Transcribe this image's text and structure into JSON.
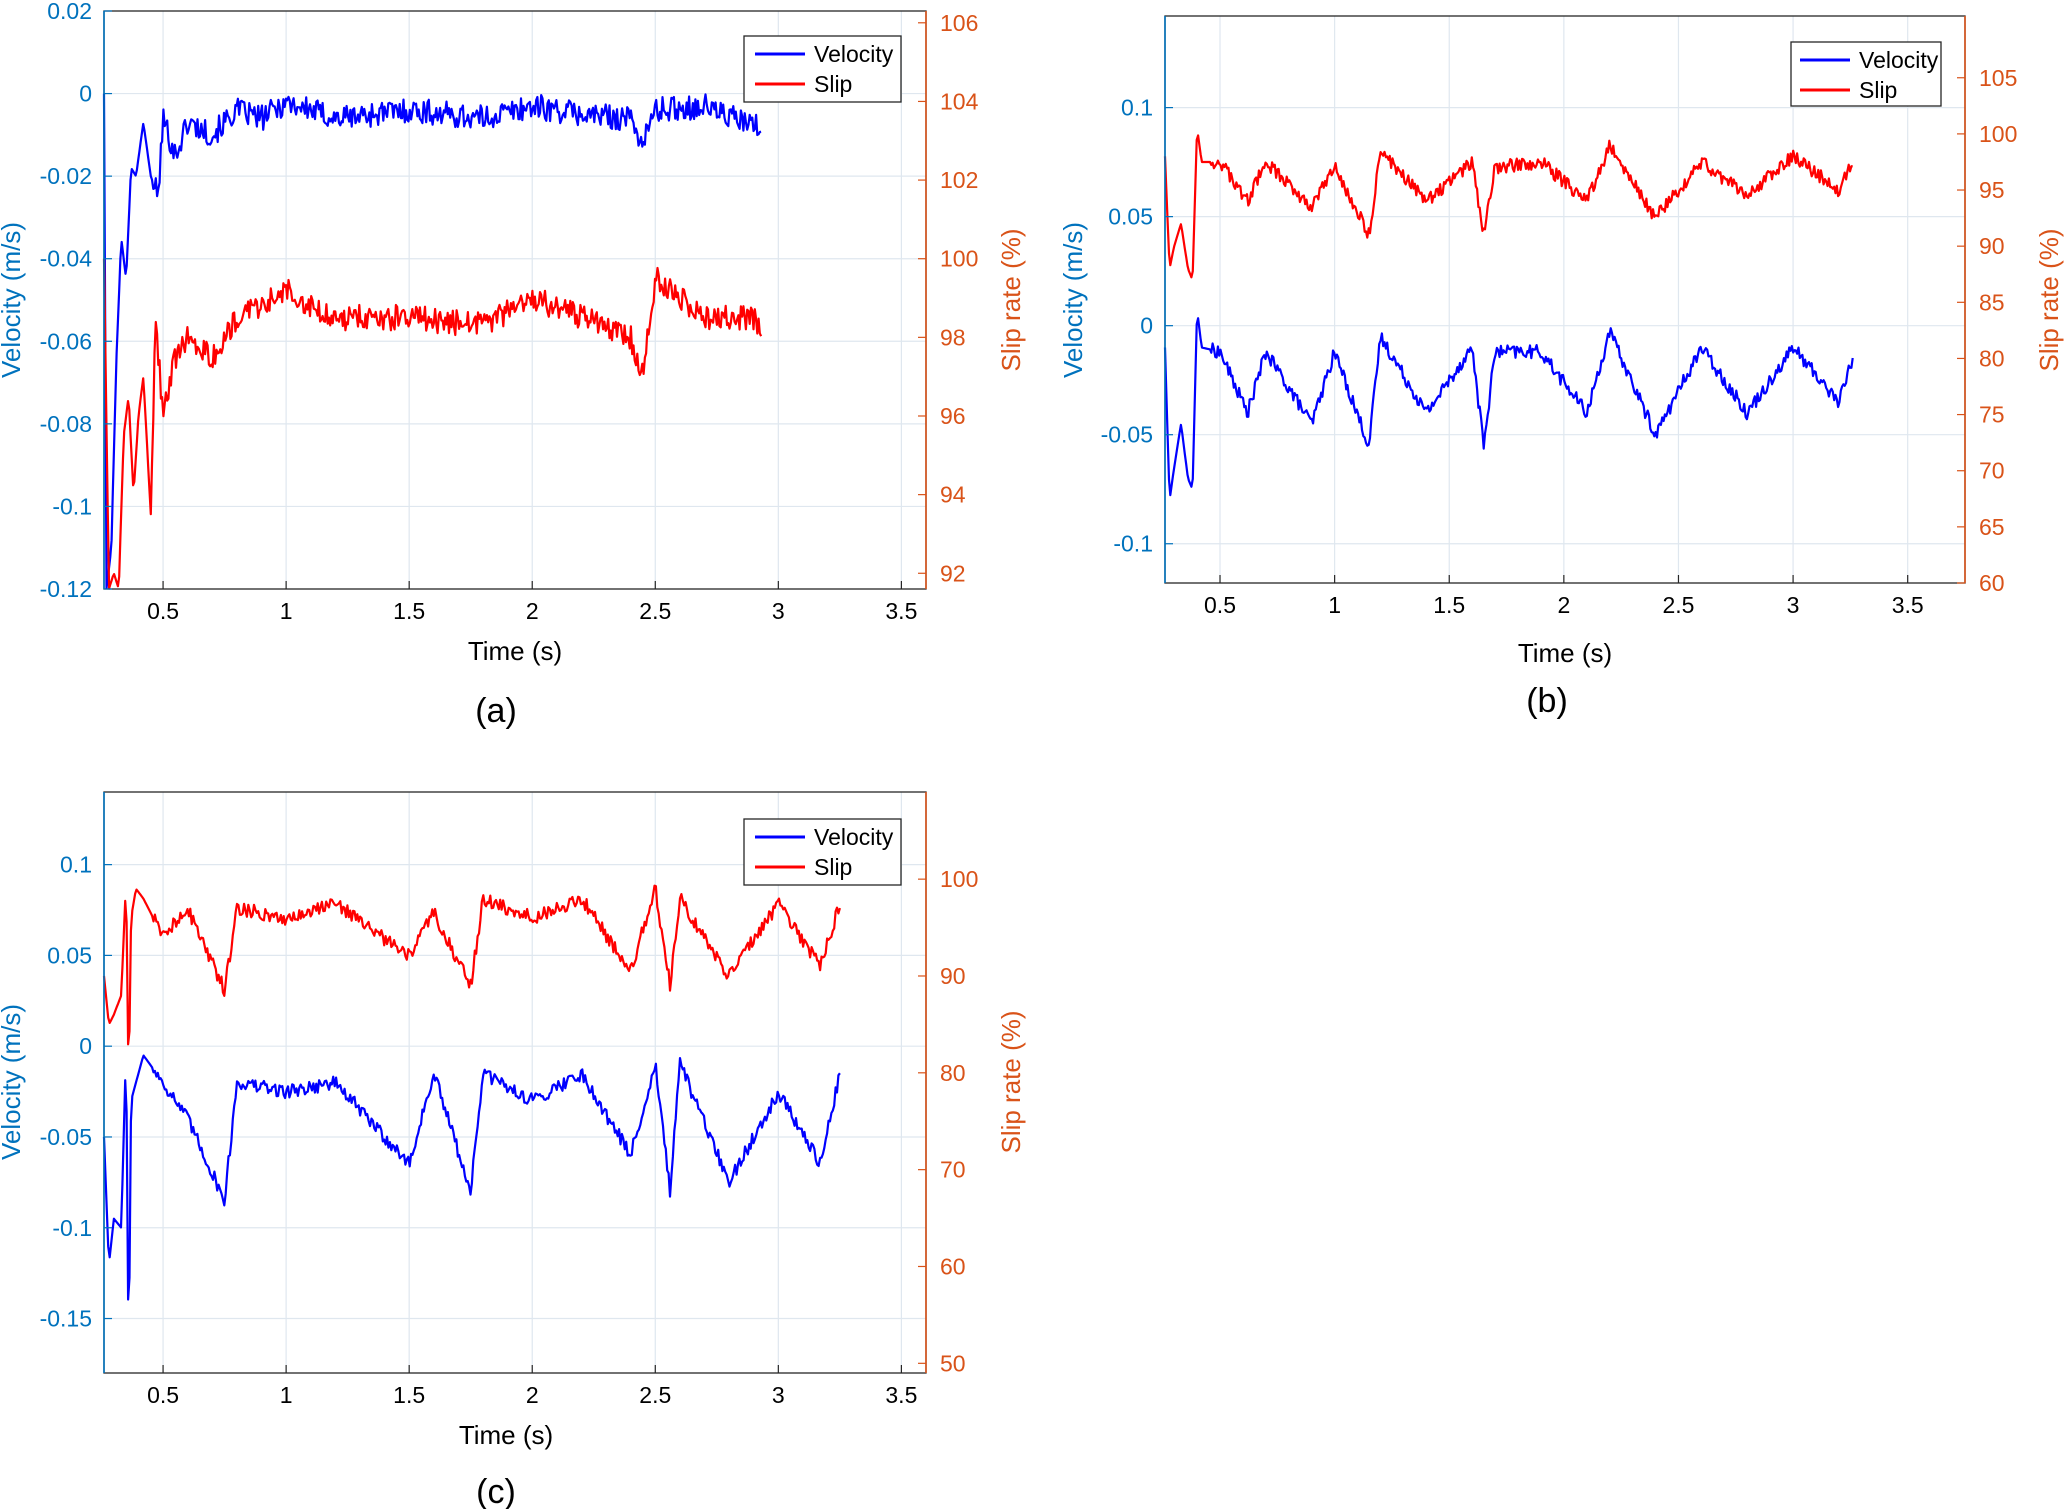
{
  "colors": {
    "velocity": "#0000ff",
    "slip": "#ff0000",
    "left_axis": "#0072bd",
    "right_axis": "#d95319",
    "grid": "#dfe7ef",
    "box": "#262626"
  },
  "chart_data": [
    {
      "id": "a",
      "caption": "(a)",
      "type": "line",
      "xlabel": "Time (s)",
      "ylabel_left": "Velocity (m/s)",
      "ylabel_right": "Slip rate (%)",
      "xlim": [
        0.26,
        3.6
      ],
      "ylim_left": [
        -0.12,
        0.02
      ],
      "ylim_right": [
        91.6,
        106.3
      ],
      "xticks": [
        0.5,
        1,
        1.5,
        2,
        2.5,
        3,
        3.5
      ],
      "xtick_labels": [
        "0.5",
        "1",
        "1.5",
        "2",
        "2.5",
        "3",
        "3.5"
      ],
      "yticks_left": [
        -0.12,
        -0.1,
        -0.08,
        -0.06,
        -0.04,
        -0.02,
        0,
        0.02
      ],
      "ytick_labels_left": [
        "-0.12",
        "-0.1",
        "-0.08",
        "-0.06",
        "-0.04",
        "-0.02",
        "0",
        "0.02"
      ],
      "yticks_right": [
        92,
        94,
        96,
        98,
        100,
        102,
        104,
        106
      ],
      "ytick_labels_right": [
        "92",
        "94",
        "96",
        "98",
        "100",
        "102",
        "104",
        "106"
      ],
      "grid": true,
      "legend": "top-right",
      "series": [
        {
          "name": "Velocity",
          "axis": "left",
          "x": [
            0.26,
            0.27,
            0.29,
            0.31,
            0.33,
            0.35,
            0.37,
            0.39,
            0.42,
            0.45,
            0.48,
            0.5,
            0.55,
            0.6,
            0.7,
            0.8,
            0.9,
            1.0,
            1.2,
            1.5,
            1.8,
            2.0,
            2.2,
            2.4,
            2.45,
            2.5,
            2.7,
            2.9,
            2.93
          ],
          "y": [
            0.0,
            -0.12,
            -0.11,
            -0.065,
            -0.035,
            -0.045,
            -0.018,
            -0.02,
            -0.007,
            -0.02,
            -0.025,
            -0.006,
            -0.015,
            -0.007,
            -0.01,
            -0.004,
            -0.006,
            -0.002,
            -0.006,
            -0.004,
            -0.006,
            -0.003,
            -0.005,
            -0.006,
            -0.012,
            -0.004,
            -0.003,
            -0.008,
            -0.008
          ]
        },
        {
          "name": "Slip",
          "axis": "right",
          "x": [
            0.26,
            0.28,
            0.3,
            0.32,
            0.34,
            0.36,
            0.38,
            0.4,
            0.42,
            0.45,
            0.47,
            0.5,
            0.55,
            0.6,
            0.7,
            0.8,
            0.9,
            1.0,
            1.2,
            1.5,
            1.8,
            2.0,
            2.2,
            2.4,
            2.45,
            2.5,
            2.7,
            2.9,
            2.93
          ],
          "y": [
            100.0,
            91.6,
            92.0,
            91.6,
            95.5,
            96.5,
            94.0,
            96.0,
            97.0,
            93.5,
            98.5,
            96.0,
            97.5,
            98.0,
            97.5,
            98.5,
            98.8,
            99.2,
            98.5,
            98.5,
            98.3,
            99.0,
            98.5,
            98.0,
            97.0,
            99.5,
            98.5,
            98.5,
            98.2
          ]
        }
      ]
    },
    {
      "id": "b",
      "caption": "(b)",
      "type": "line",
      "xlabel": "Time (s)",
      "ylabel_left": "Velocity (m/s)",
      "ylabel_right": "Slip rate (%)",
      "xlim": [
        0.26,
        3.75
      ],
      "ylim_left": [
        -0.118,
        0.142
      ],
      "ylim_right": [
        60,
        110.5
      ],
      "xticks": [
        0.5,
        1,
        1.5,
        2,
        2.5,
        3,
        3.5
      ],
      "xtick_labels": [
        "0.5",
        "1",
        "1.5",
        "2",
        "2.5",
        "3",
        "3.5"
      ],
      "yticks_left": [
        -0.1,
        -0.05,
        0,
        0.05,
        0.1
      ],
      "ytick_labels_left": [
        "-0.1",
        "-0.05",
        "0",
        "0.05",
        "0.1"
      ],
      "yticks_right": [
        60,
        65,
        70,
        75,
        80,
        85,
        90,
        95,
        100,
        105
      ],
      "ytick_labels_right": [
        "60",
        "65",
        "70",
        "75",
        "80",
        "85",
        "90",
        "95",
        "100",
        "105"
      ],
      "grid": true,
      "legend": "top-right",
      "series": [
        {
          "name": "Velocity",
          "axis": "left",
          "x": [
            0.26,
            0.28,
            0.3,
            0.33,
            0.36,
            0.38,
            0.4,
            0.42,
            0.5,
            0.62,
            0.7,
            0.9,
            1.0,
            1.15,
            1.2,
            1.4,
            1.6,
            1.65,
            1.7,
            1.9,
            2.1,
            2.2,
            2.4,
            2.6,
            2.8,
            3.0,
            3.2,
            3.26
          ],
          "y": [
            -0.01,
            -0.08,
            -0.065,
            -0.045,
            -0.07,
            -0.075,
            0.007,
            -0.01,
            -0.012,
            -0.04,
            -0.012,
            -0.045,
            -0.012,
            -0.055,
            -0.005,
            -0.04,
            -0.01,
            -0.055,
            -0.012,
            -0.012,
            -0.04,
            -0.003,
            -0.05,
            -0.01,
            -0.04,
            -0.01,
            -0.035,
            -0.015
          ]
        },
        {
          "name": "Slip",
          "axis": "right",
          "x": [
            0.26,
            0.28,
            0.3,
            0.33,
            0.36,
            0.38,
            0.4,
            0.42,
            0.5,
            0.62,
            0.7,
            0.9,
            1.0,
            1.15,
            1.2,
            1.4,
            1.6,
            1.65,
            1.7,
            1.9,
            2.1,
            2.2,
            2.4,
            2.6,
            2.8,
            3.0,
            3.2,
            3.26
          ],
          "y": [
            98.0,
            88.0,
            90.0,
            92.0,
            88.0,
            87.0,
            100.5,
            97.5,
            97.5,
            94.0,
            97.5,
            93.5,
            97.0,
            91.0,
            98.5,
            94.0,
            97.5,
            91.0,
            97.0,
            97.5,
            94.0,
            99.0,
            92.5,
            97.5,
            94.5,
            98.0,
            95.0,
            97.5
          ]
        }
      ]
    },
    {
      "id": "c",
      "caption": "(c)",
      "type": "line",
      "xlabel": "Time (s)",
      "ylabel_left": "Velocity (m/s)",
      "ylabel_right": "Slip rate (%)",
      "xlim": [
        0.26,
        3.6
      ],
      "ylim_left": [
        -0.18,
        0.14
      ],
      "ylim_right": [
        49,
        109
      ],
      "xticks": [
        0.5,
        1,
        1.5,
        2,
        2.5,
        3,
        3.5
      ],
      "xtick_labels": [
        "0.5",
        "1",
        "1.5",
        "2",
        "2.5",
        "3",
        "3.5"
      ],
      "yticks_left": [
        -0.15,
        -0.1,
        -0.05,
        0,
        0.05,
        0.1
      ],
      "ytick_labels_left": [
        "-0.15",
        "-0.1",
        "-0.05",
        "0",
        "0.05",
        "0.1"
      ],
      "yticks_right": [
        50,
        60,
        70,
        80,
        90,
        100
      ],
      "ytick_labels_right": [
        "50",
        "60",
        "70",
        "80",
        "90",
        "100"
      ],
      "grid": true,
      "legend": "top-right",
      "series": [
        {
          "name": "Velocity",
          "axis": "left",
          "x": [
            0.26,
            0.28,
            0.3,
            0.33,
            0.35,
            0.36,
            0.37,
            0.39,
            0.42,
            0.5,
            0.6,
            0.75,
            0.8,
            1.0,
            1.2,
            1.5,
            1.6,
            1.75,
            1.8,
            2.0,
            2.2,
            2.4,
            2.5,
            2.56,
            2.6,
            2.8,
            3.0,
            3.17,
            3.25
          ],
          "y": [
            -0.05,
            -0.12,
            -0.095,
            -0.1,
            0.0,
            -0.18,
            -0.03,
            -0.02,
            -0.005,
            -0.02,
            -0.04,
            -0.085,
            -0.02,
            -0.025,
            -0.02,
            -0.065,
            -0.015,
            -0.08,
            -0.015,
            -0.03,
            -0.015,
            -0.06,
            -0.01,
            -0.08,
            -0.01,
            -0.075,
            -0.025,
            -0.065,
            -0.015
          ]
        },
        {
          "name": "Slip",
          "axis": "right",
          "x": [
            0.26,
            0.28,
            0.3,
            0.33,
            0.35,
            0.36,
            0.37,
            0.39,
            0.42,
            0.5,
            0.6,
            0.75,
            0.8,
            1.0,
            1.2,
            1.5,
            1.6,
            1.75,
            1.8,
            2.0,
            2.2,
            2.4,
            2.5,
            2.56,
            2.6,
            2.8,
            3.0,
            3.17,
            3.25
          ],
          "y": [
            90.0,
            85.0,
            86.0,
            88.0,
            100.0,
            78.0,
            96.0,
            99.0,
            98.0,
            94.0,
            97.0,
            88.5,
            97.0,
            96.0,
            97.5,
            92.0,
            96.5,
            89.0,
            98.0,
            96.0,
            98.0,
            90.5,
            99.0,
            89.0,
            98.0,
            90.0,
            97.5,
            91.0,
            97.5
          ]
        }
      ]
    }
  ]
}
